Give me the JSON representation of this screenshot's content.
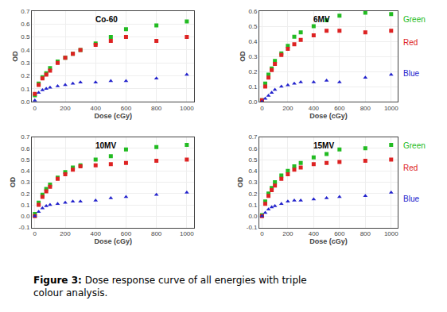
{
  "chart_data": [
    {
      "type": "scatter",
      "title": "Co-60",
      "x_label": "Dose (cGy)",
      "y_label": "OD",
      "xlim": [
        -20,
        1050
      ],
      "ylim": [
        0.0,
        0.7
      ],
      "xticks": [
        0,
        200,
        400,
        600,
        800,
        1000
      ],
      "yticks": [
        {
          "value": 0.0,
          "label": "0.0"
        },
        0.1,
        0.2,
        0.3,
        0.4,
        0.5,
        0.6,
        0.7
      ],
      "series": [
        {
          "color": "#22bb22",
          "marker": "square",
          "x": [
            0,
            25,
            50,
            75,
            100,
            150,
            200,
            250,
            300,
            400,
            500,
            600,
            800,
            1000
          ],
          "values": [
            0.05,
            0.14,
            0.19,
            0.22,
            0.26,
            0.31,
            0.34,
            0.37,
            0.4,
            0.45,
            0.5,
            0.56,
            0.59,
            0.62
          ]
        },
        {
          "color": "#dd2222",
          "marker": "square",
          "x": [
            0,
            25,
            50,
            75,
            100,
            150,
            200,
            250,
            300,
            400,
            500,
            600,
            800,
            1000
          ],
          "values": [
            0.06,
            0.13,
            0.18,
            0.21,
            0.24,
            0.3,
            0.34,
            0.37,
            0.4,
            0.44,
            0.47,
            0.5,
            0.47,
            0.5
          ]
        },
        {
          "color": "#2222cc",
          "marker": "triangle-up",
          "x": [
            0,
            25,
            50,
            75,
            100,
            150,
            200,
            250,
            300,
            400,
            500,
            600,
            800,
            1000
          ],
          "values": [
            0.01,
            0.07,
            0.09,
            0.1,
            0.11,
            0.12,
            0.13,
            0.14,
            0.15,
            0.15,
            0.16,
            0.16,
            0.18,
            0.21
          ]
        }
      ]
    },
    {
      "type": "scatter",
      "title": "6MV",
      "x_label": "Dose (cGy)",
      "y_label": "OD",
      "xlim": [
        -20,
        1050
      ],
      "ylim": [
        0.0,
        0.6
      ],
      "xticks": [
        0,
        200,
        400,
        600,
        800,
        1000
      ],
      "yticks": [
        {
          "value": 0.0,
          "label": "0.0"
        },
        0.1,
        0.2,
        0.3,
        0.4,
        0.5,
        0.6
      ],
      "legend": "right",
      "series": [
        {
          "name": "Green",
          "color": "#22bb22",
          "marker": "square",
          "x": [
            0,
            25,
            50,
            75,
            100,
            150,
            200,
            250,
            300,
            400,
            500,
            600,
            800,
            1000
          ],
          "values": [
            0.01,
            0.12,
            0.18,
            0.22,
            0.27,
            0.32,
            0.37,
            0.43,
            0.46,
            0.5,
            0.54,
            0.57,
            0.59,
            0.58
          ]
        },
        {
          "name": "Red",
          "color": "#dd2222",
          "marker": "square",
          "x": [
            0,
            25,
            50,
            75,
            100,
            150,
            200,
            250,
            300,
            400,
            500,
            600,
            800,
            1000
          ],
          "values": [
            0.01,
            0.1,
            0.16,
            0.21,
            0.25,
            0.31,
            0.35,
            0.38,
            0.41,
            0.44,
            0.47,
            0.47,
            0.46,
            0.47
          ]
        },
        {
          "name": "Blue",
          "color": "#2222cc",
          "marker": "triangle-up",
          "x": [
            0,
            25,
            50,
            75,
            100,
            150,
            200,
            250,
            300,
            400,
            500,
            600,
            800,
            1000
          ],
          "values": [
            0.0,
            0.02,
            0.04,
            0.06,
            0.08,
            0.1,
            0.11,
            0.12,
            0.13,
            0.13,
            0.14,
            0.13,
            0.16,
            0.18
          ]
        }
      ]
    },
    {
      "type": "scatter",
      "title": "10MV",
      "x_label": "Dose (cGy)",
      "y_label": "OD",
      "xlim": [
        -20,
        1050
      ],
      "ylim": [
        -0.1,
        0.7
      ],
      "xticks": [
        0,
        200,
        400,
        600,
        800,
        1000
      ],
      "yticks": [
        -0.1,
        {
          "value": 0.0,
          "label": "0.0"
        },
        0.1,
        0.2,
        0.3,
        0.4,
        0.5,
        0.6,
        0.7
      ],
      "series": [
        {
          "color": "#22bb22",
          "marker": "square",
          "x": [
            0,
            25,
            50,
            75,
            100,
            150,
            200,
            250,
            300,
            400,
            500,
            600,
            800,
            1000
          ],
          "values": [
            0.02,
            0.12,
            0.19,
            0.24,
            0.28,
            0.34,
            0.39,
            0.43,
            0.45,
            0.5,
            0.53,
            0.59,
            0.61,
            0.63
          ]
        },
        {
          "color": "#dd2222",
          "marker": "square",
          "x": [
            0,
            25,
            50,
            75,
            100,
            150,
            200,
            250,
            300,
            400,
            500,
            600,
            800,
            1000
          ],
          "values": [
            0.0,
            0.1,
            0.17,
            0.22,
            0.26,
            0.33,
            0.37,
            0.41,
            0.44,
            0.45,
            0.46,
            0.47,
            0.49,
            0.5
          ]
        },
        {
          "color": "#2222cc",
          "marker": "triangle-up",
          "x": [
            0,
            25,
            50,
            75,
            100,
            150,
            200,
            250,
            300,
            400,
            500,
            600,
            800,
            1000
          ],
          "values": [
            0.0,
            0.04,
            0.07,
            0.09,
            0.1,
            0.11,
            0.12,
            0.13,
            0.13,
            0.14,
            0.16,
            0.17,
            0.19,
            0.21
          ]
        }
      ]
    },
    {
      "type": "scatter",
      "title": "15MV",
      "x_label": "Dose (cGy)",
      "y_label": "OD",
      "xlim": [
        -20,
        1050
      ],
      "ylim": [
        -0.1,
        0.7
      ],
      "xticks": [
        0,
        200,
        400,
        600,
        800,
        1000
      ],
      "yticks": [
        -0.1,
        {
          "value": 0.0,
          "label": "0.0"
        },
        0.1,
        0.2,
        0.3,
        0.4,
        0.5,
        0.6,
        0.7
      ],
      "legend": "right",
      "series": [
        {
          "name": "Green",
          "color": "#22bb22",
          "marker": "square",
          "x": [
            0,
            25,
            50,
            75,
            100,
            150,
            200,
            250,
            300,
            400,
            500,
            600,
            800,
            1000
          ],
          "values": [
            0.01,
            0.13,
            0.2,
            0.25,
            0.3,
            0.36,
            0.4,
            0.44,
            0.47,
            0.52,
            0.55,
            0.59,
            0.6,
            0.63
          ]
        },
        {
          "name": "Red",
          "color": "#dd2222",
          "marker": "square",
          "x": [
            0,
            25,
            50,
            75,
            100,
            150,
            200,
            250,
            300,
            400,
            500,
            600,
            800,
            1000
          ],
          "values": [
            0.0,
            0.11,
            0.18,
            0.23,
            0.27,
            0.33,
            0.37,
            0.41,
            0.43,
            0.46,
            0.47,
            0.48,
            0.49,
            0.5
          ]
        },
        {
          "name": "Blue",
          "color": "#2222cc",
          "marker": "triangle-up",
          "x": [
            0,
            25,
            50,
            75,
            100,
            150,
            200,
            250,
            300,
            400,
            500,
            600,
            800,
            1000
          ],
          "values": [
            0.0,
            0.03,
            0.06,
            0.08,
            0.09,
            0.11,
            0.13,
            0.14,
            0.14,
            0.15,
            0.16,
            0.17,
            0.18,
            0.21
          ]
        }
      ]
    }
  ],
  "caption": [
    "Figure 3:",
    " Dose response curve of all energies with triple\ncolour analysis."
  ]
}
